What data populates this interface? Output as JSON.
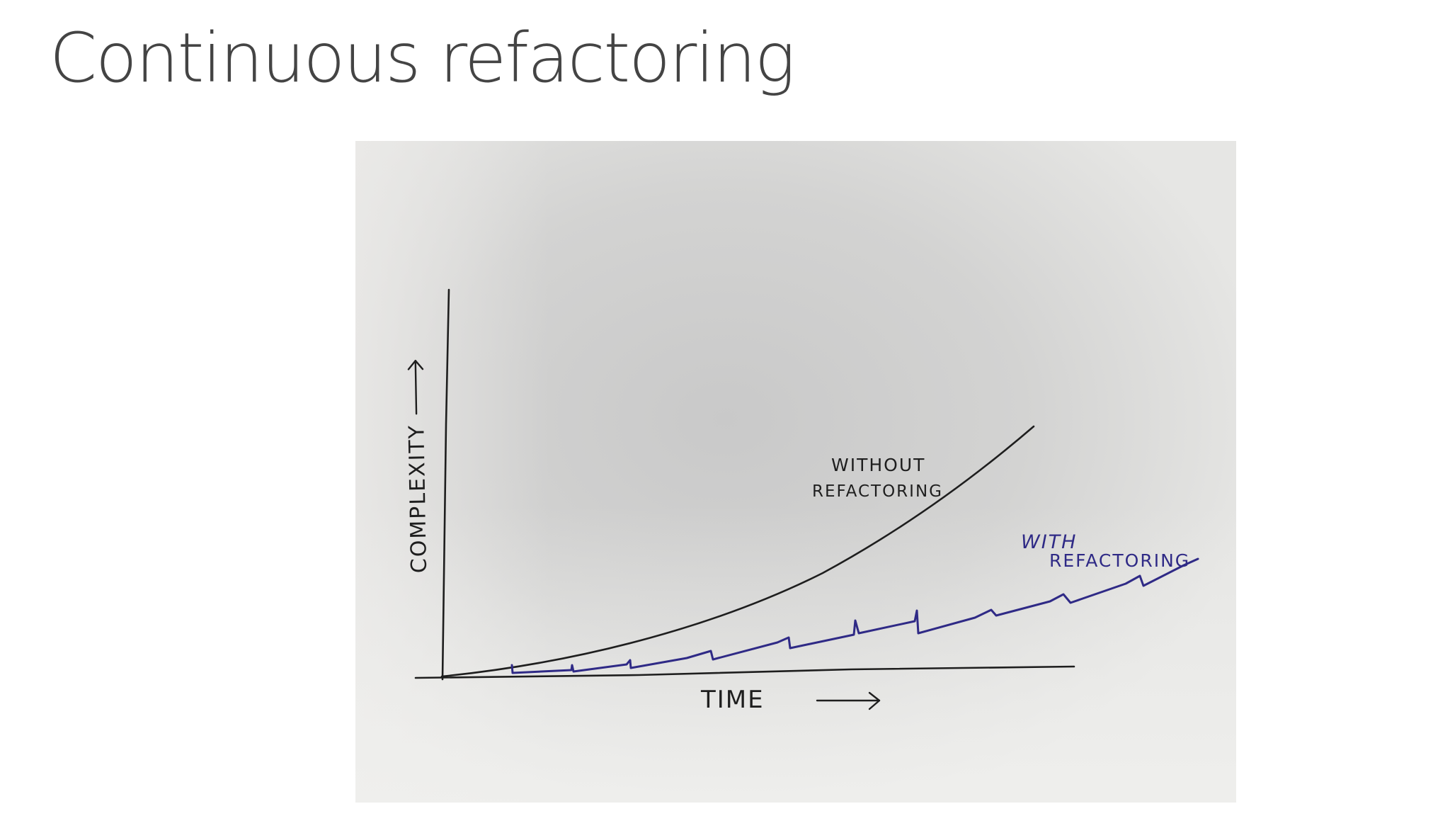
{
  "slide": {
    "title": "Continuous refactoring"
  },
  "sketch": {
    "y_axis_label": "COMPLEXITY",
    "x_axis_label": "TIME",
    "curve_without_label_line1": "WITHOUT",
    "curve_without_label_line2": "REFACTORING",
    "curve_with_label_line1": "WITH",
    "curve_with_label_line2": "REFACTORING",
    "colors": {
      "paper": "#dcdcda",
      "ink_black": "#1e1e1e",
      "ink_blue": "#2f2a86",
      "title": "#444444"
    }
  }
}
